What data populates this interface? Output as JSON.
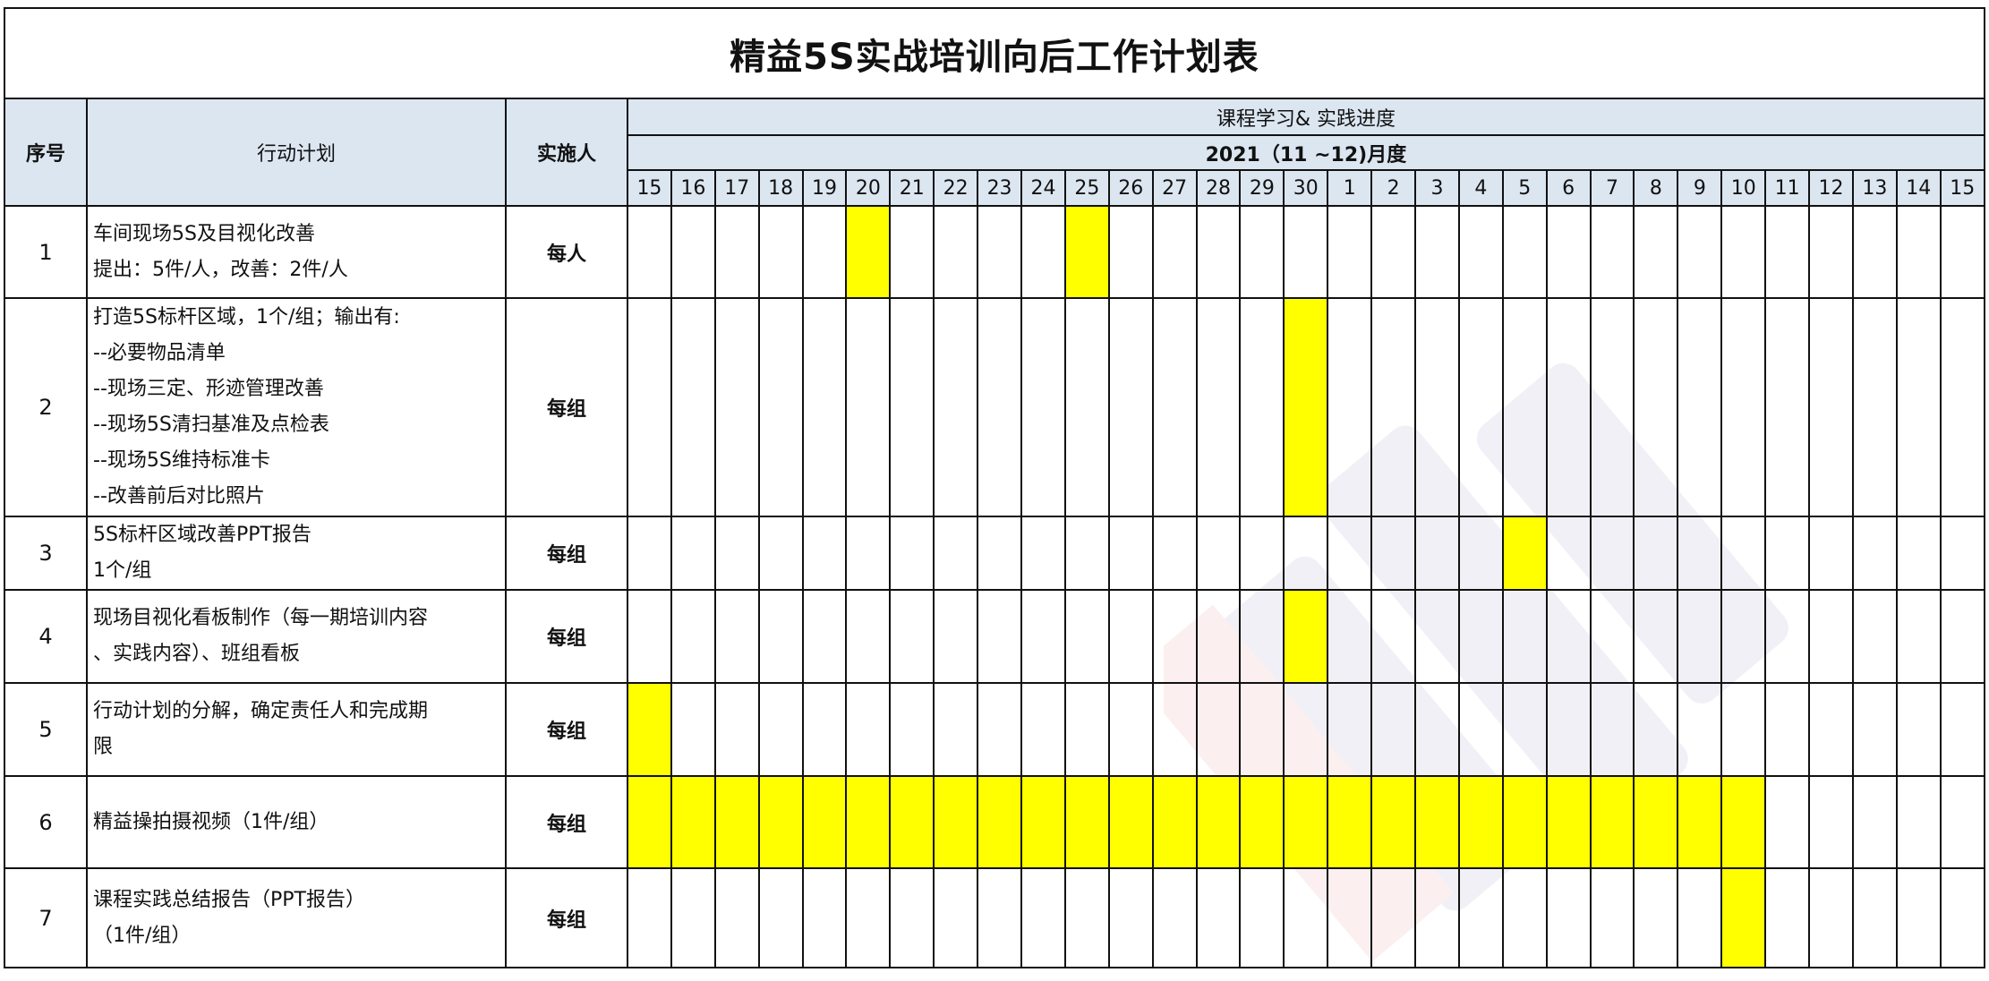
{
  "title": "精益5S实战培训向后工作计划表",
  "header": {
    "seq": "序号",
    "plan": "行动计划",
    "owner": "实施人",
    "progress": "课程学习& 实践进度",
    "period": "2021（11 ~12)月度"
  },
  "days": [
    "15",
    "16",
    "17",
    "18",
    "19",
    "20",
    "21",
    "22",
    "23",
    "24",
    "25",
    "26",
    "27",
    "28",
    "29",
    "30",
    "1",
    "2",
    "3",
    "4",
    "5",
    "6",
    "7",
    "8",
    "9",
    "10",
    "11",
    "12",
    "13",
    "14",
    "15"
  ],
  "highlight_color": "#ffff00",
  "header_color": "#dce6f1",
  "rows": [
    {
      "seq": "1",
      "plan": [
        "车间现场5S及目视化改善",
        "提出：5件/人，改善：2件/人"
      ],
      "owner": "每人",
      "marked_day_columns": [
        5,
        10
      ]
    },
    {
      "seq": "2",
      "plan": [
        "打造5S标杆区域，1个/组；输出有:",
        "--必要物品清单",
        "--现场三定、形迹管理改善",
        "--现场5S清扫基准及点检表",
        "--现场5S维持标准卡",
        "--改善前后对比照片"
      ],
      "owner": "每组",
      "marked_day_columns": [
        15
      ]
    },
    {
      "seq": "3",
      "plan": [
        "5S标杆区域改善PPT报告",
        "1个/组"
      ],
      "owner": "每组",
      "marked_day_columns": [
        20
      ]
    },
    {
      "seq": "4",
      "plan": [
        "现场目视化看板制作（每一期培训内容",
        "、实践内容）、班组看板"
      ],
      "owner": "每组",
      "marked_day_columns": [
        15
      ]
    },
    {
      "seq": "5",
      "plan": [
        "行动计划的分解，确定责任人和完成期",
        "限"
      ],
      "owner": "每组",
      "marked_day_columns": [
        0
      ]
    },
    {
      "seq": "6",
      "plan": [
        "精益操拍摄视频（1件/组）"
      ],
      "owner": "每组",
      "marked_day_columns": [
        0,
        1,
        2,
        3,
        4,
        5,
        6,
        7,
        8,
        9,
        10,
        11,
        12,
        13,
        14,
        15,
        16,
        17,
        18,
        19,
        20,
        21,
        22,
        23,
        24,
        25
      ]
    },
    {
      "seq": "7",
      "plan": [
        "课程实践总结报告（PPT报告）",
        "（1件/组）"
      ],
      "owner": "每组",
      "marked_day_columns": [
        25
      ]
    }
  ]
}
